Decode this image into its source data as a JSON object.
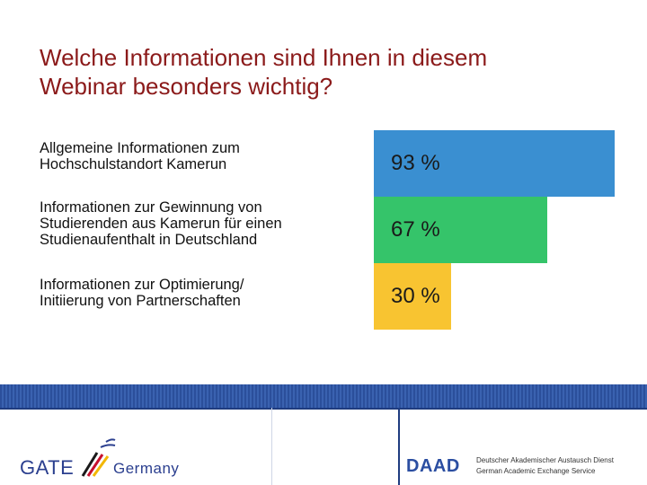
{
  "slide": {
    "title_lines": [
      "Welche Informationen sind Ihnen in diesem",
      "Webinar besonders wichtig?"
    ]
  },
  "chart_data": {
    "type": "bar",
    "orientation": "horizontal",
    "title": "Welche Informationen sind Ihnen in diesem Webinar besonders wichtig?",
    "categories": [
      [
        "Allgemeine Informationen zum",
        "Hochschulstandort Kamerun"
      ],
      [
        "Informationen zur Gewinnung von",
        "Studierenden aus Kamerun für einen",
        "Studienaufenthalt in Deutschland"
      ],
      [
        "Informationen zur Optimierung/",
        "Initiierung von Partnerschaften"
      ]
    ],
    "values": [
      93,
      67,
      30
    ],
    "value_labels": [
      "93 %",
      "67 %",
      "30 %"
    ],
    "unit": "%",
    "xlim": [
      0,
      100
    ],
    "colors": [
      "#3a8fd1",
      "#35c46a",
      "#f8c431"
    ]
  },
  "footer": {
    "gate_text": "GATE",
    "germany_text": "Germany",
    "daad_logo": "DAAD",
    "daad_de": "Deutscher Akademischer Austausch Dienst",
    "daad_en": "German Academic Exchange Service"
  }
}
